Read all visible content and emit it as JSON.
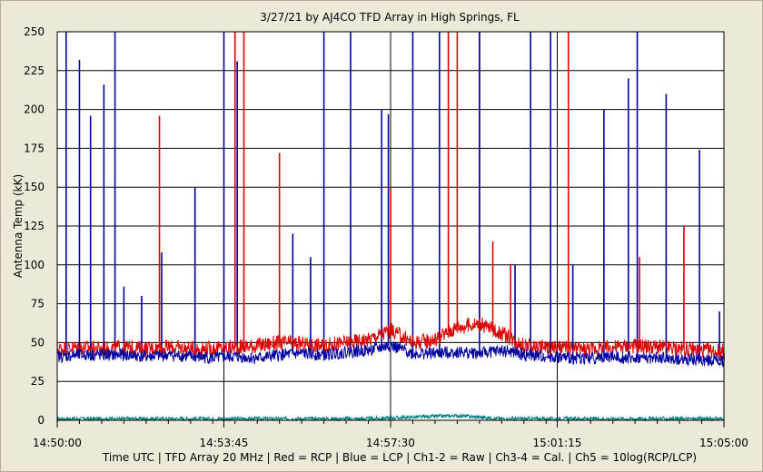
{
  "chart_data": {
    "type": "line",
    "title": "3/27/21  by  AJ4CO TFD Array  in  High Springs, FL",
    "ylabel": "Antenna Temp (kK)",
    "xlabel": "Time UTC | TFD Array 20 MHz | Red = RCP | Blue = LCP | Ch1-2 = Raw | Ch3-4 = Cal. | Ch5 = 10log(RCP/LCP)",
    "ylim": [
      0,
      250
    ],
    "yticks": [
      0,
      25,
      50,
      75,
      100,
      125,
      150,
      175,
      200,
      225,
      250
    ],
    "xticks": [
      "14:50:00",
      "14:53:45",
      "14:57:30",
      "15:01:15",
      "15:05:00"
    ],
    "xlim_minutes": [
      0,
      15
    ],
    "grid": true,
    "colors": {
      "rcp": "#dd0000",
      "lcp": "#0000a0",
      "ratio": "#008080",
      "plot_bg": "#ffffff",
      "grid": "#000000"
    },
    "series": [
      {
        "name": "RCP",
        "color": "#dd0000",
        "x": [
          0,
          0.5,
          1,
          1.5,
          2,
          2.5,
          3,
          3.5,
          4,
          4.5,
          5,
          5.5,
          6,
          6.5,
          7,
          7.5,
          8,
          8.5,
          9,
          9.5,
          10,
          10.5,
          11,
          11.5,
          12,
          12.5,
          13,
          13.5,
          14,
          14.5,
          15
        ],
        "values": [
          46,
          47,
          46,
          47,
          46,
          47,
          46,
          46,
          47,
          48,
          50,
          49,
          48,
          50,
          52,
          58,
          50,
          52,
          60,
          62,
          56,
          48,
          47,
          46,
          46,
          47,
          48,
          47,
          46,
          45,
          44
        ]
      },
      {
        "name": "LCP",
        "color": "#0000a0",
        "x": [
          0,
          0.5,
          1,
          1.5,
          2,
          2.5,
          3,
          3.5,
          4,
          4.5,
          5,
          5.5,
          6,
          6.5,
          7,
          7.5,
          8,
          8.5,
          9,
          9.5,
          10,
          10.5,
          11,
          11.5,
          12,
          12.5,
          13,
          13.5,
          14,
          14.5,
          15
        ],
        "values": [
          41,
          42,
          42,
          42,
          41,
          42,
          41,
          40,
          41,
          40,
          42,
          43,
          42,
          44,
          45,
          48,
          43,
          43,
          44,
          43,
          45,
          42,
          41,
          40,
          40,
          41,
          40,
          40,
          39,
          39,
          38
        ]
      },
      {
        "name": "Ch5",
        "color": "#008080",
        "x": [
          0,
          1,
          2,
          3,
          4,
          5,
          6,
          7,
          8,
          9,
          10,
          11,
          12,
          13,
          14,
          15
        ],
        "values": [
          1,
          1,
          1,
          1,
          1,
          1,
          1,
          1,
          2,
          3,
          1,
          1,
          1,
          1,
          1,
          1
        ]
      }
    ],
    "bursts": {
      "rcp": [
        {
          "x": 0.2,
          "peak": 90
        },
        {
          "x": 2.3,
          "peak": 196
        },
        {
          "x": 4,
          "peak": 250
        },
        {
          "x": 4.2,
          "peak": 250
        },
        {
          "x": 5,
          "peak": 172
        },
        {
          "x": 7.3,
          "peak": 110
        },
        {
          "x": 7.5,
          "peak": 150
        },
        {
          "x": 8.8,
          "peak": 250
        },
        {
          "x": 9,
          "peak": 250
        },
        {
          "x": 9.5,
          "peak": 250
        },
        {
          "x": 9.8,
          "peak": 115
        },
        {
          "x": 10.2,
          "peak": 100
        },
        {
          "x": 11.5,
          "peak": 250
        },
        {
          "x": 13.1,
          "peak": 105
        },
        {
          "x": 14.1,
          "peak": 125
        }
      ],
      "lcp": [
        {
          "x": 0.2,
          "peak": 250
        },
        {
          "x": 0.5,
          "peak": 232
        },
        {
          "x": 0.75,
          "peak": 196
        },
        {
          "x": 1.05,
          "peak": 216
        },
        {
          "x": 1.3,
          "peak": 250
        },
        {
          "x": 1.5,
          "peak": 86
        },
        {
          "x": 1.9,
          "peak": 80
        },
        {
          "x": 2.35,
          "peak": 108
        },
        {
          "x": 3.1,
          "peak": 150
        },
        {
          "x": 3.75,
          "peak": 250
        },
        {
          "x": 4.05,
          "peak": 231
        },
        {
          "x": 5.3,
          "peak": 120
        },
        {
          "x": 5.7,
          "peak": 105
        },
        {
          "x": 6,
          "peak": 250
        },
        {
          "x": 6.6,
          "peak": 250
        },
        {
          "x": 7.3,
          "peak": 200
        },
        {
          "x": 7.45,
          "peak": 197
        },
        {
          "x": 8,
          "peak": 250
        },
        {
          "x": 8.6,
          "peak": 250
        },
        {
          "x": 9.5,
          "peak": 250
        },
        {
          "x": 10.3,
          "peak": 100
        },
        {
          "x": 10.65,
          "peak": 250
        },
        {
          "x": 11.1,
          "peak": 250
        },
        {
          "x": 11.6,
          "peak": 100
        },
        {
          "x": 12.3,
          "peak": 200
        },
        {
          "x": 12.85,
          "peak": 220
        },
        {
          "x": 13.05,
          "peak": 250
        },
        {
          "x": 13.7,
          "peak": 210
        },
        {
          "x": 14.45,
          "peak": 174
        },
        {
          "x": 14.9,
          "peak": 70
        }
      ]
    }
  }
}
